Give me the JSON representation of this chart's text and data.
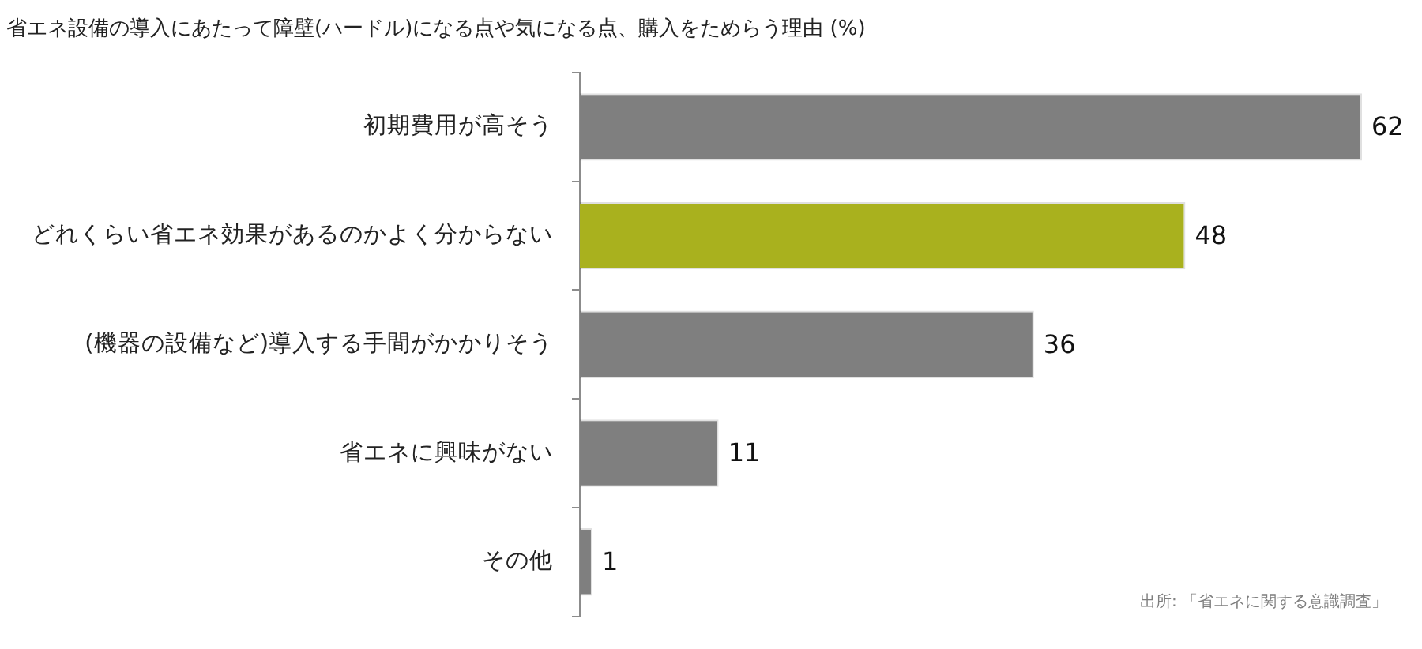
{
  "chart_data": {
    "type": "bar",
    "orientation": "horizontal",
    "title": "省エネ設備の導入にあたって障壁(ハードル)になる点や気になる点、購入をためらう理由 (%)",
    "categories": [
      "初期費用が高そう",
      "どれくらい省エネ効果があるのかよく分からない",
      "(機器の設備など)導入する手間がかかりそう",
      "省エネに興味がない",
      "その他"
    ],
    "values": [
      62,
      48,
      36,
      11,
      1
    ],
    "colors": [
      "#7f7f7f",
      "#a9b11e",
      "#7f7f7f",
      "#7f7f7f",
      "#7f7f7f"
    ],
    "data_labels": true,
    "tick_labels": "y",
    "grid": false,
    "legend": false,
    "annotations": [
      "出所: 「省エネに関する意識調査」"
    ]
  }
}
